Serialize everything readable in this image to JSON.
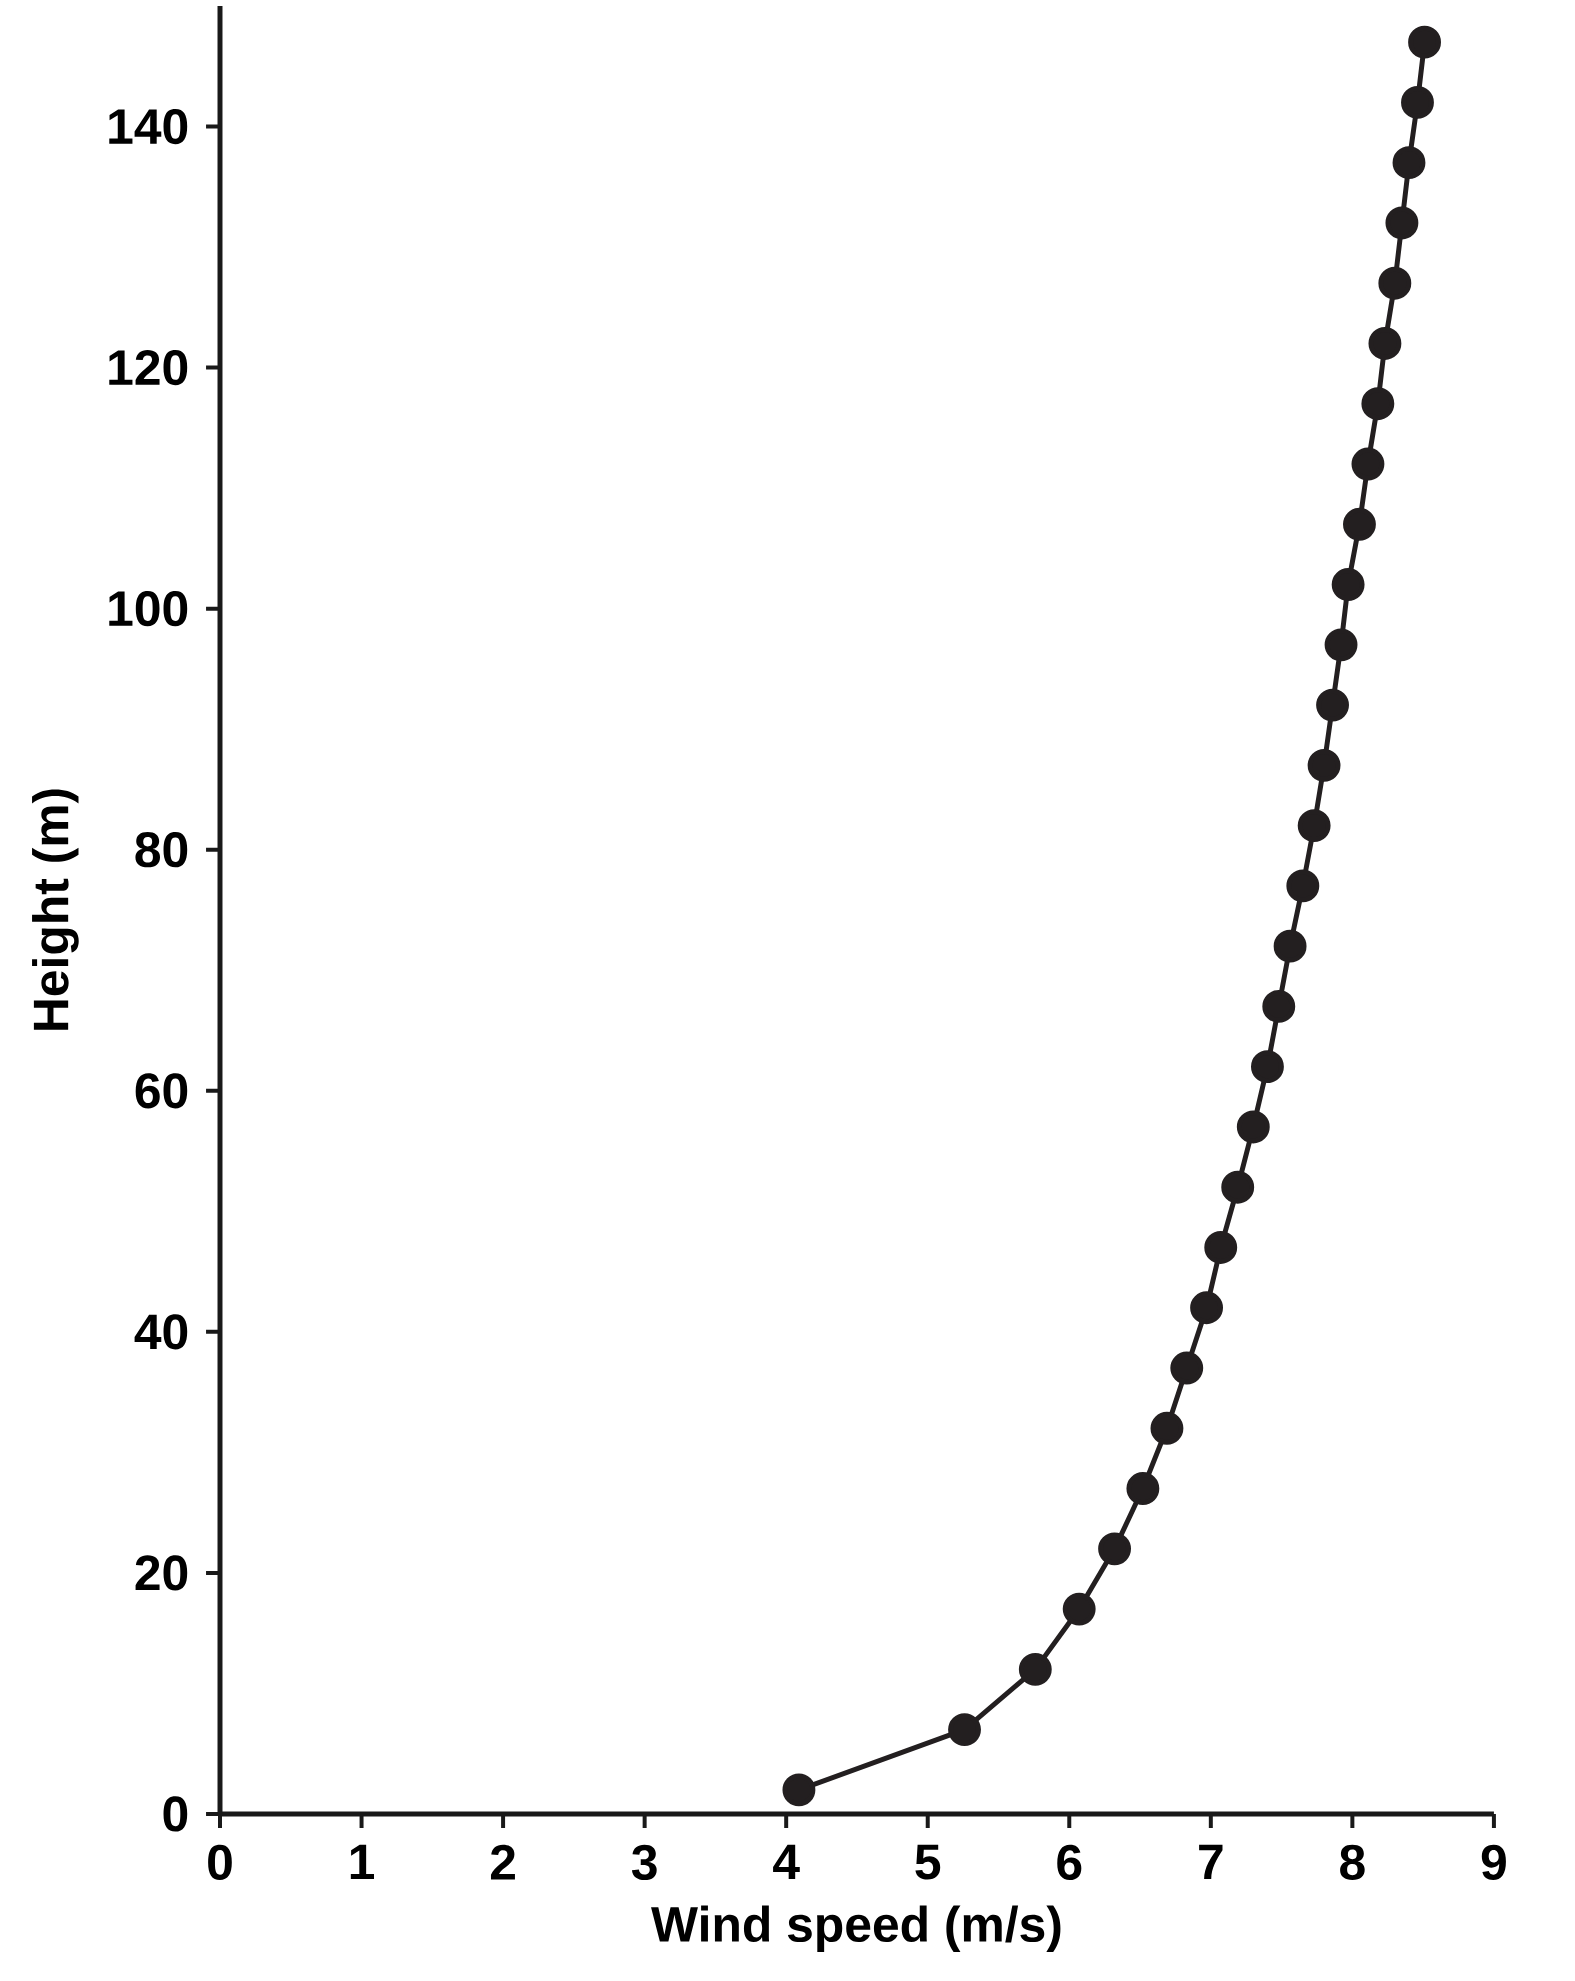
{
  "chart_data": {
    "type": "line",
    "xlabel": "Wind speed (m/s)",
    "ylabel": "Height (m)",
    "x": [
      4.09,
      5.26,
      5.76,
      6.07,
      6.32,
      6.52,
      6.69,
      6.83,
      6.97,
      7.07,
      7.19,
      7.3,
      7.4,
      7.48,
      7.56,
      7.65,
      7.73,
      7.8,
      7.86,
      7.92,
      7.97,
      8.05,
      8.11,
      8.18,
      8.23,
      8.3,
      8.35,
      8.4,
      8.46,
      8.51
    ],
    "series": [
      {
        "color": "#231f20",
        "values": [
          2,
          7,
          12,
          17,
          22,
          27,
          32,
          37,
          42,
          47,
          52,
          57,
          62,
          67,
          72,
          77,
          82,
          87,
          92,
          97,
          102,
          107,
          112,
          117,
          122,
          127,
          132,
          137,
          142,
          147
        ]
      }
    ],
    "xlim": [
      0,
      9
    ],
    "ylim": [
      0,
      150
    ],
    "xticks": [
      0,
      1,
      2,
      3,
      4,
      5,
      6,
      7,
      8,
      9
    ],
    "yticks": [
      0,
      20,
      40,
      60,
      80,
      100,
      120,
      140
    ],
    "marker": "circle",
    "line_style": "solid",
    "grid": false
  }
}
